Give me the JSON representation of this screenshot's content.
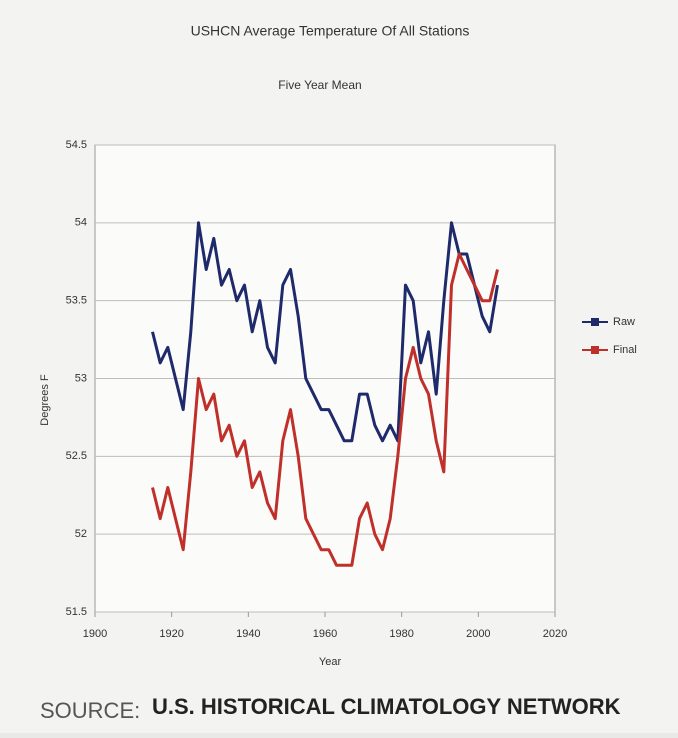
{
  "chart_data": {
    "type": "line",
    "title": "USHCN Average Temperature Of All Stations",
    "subtitle": "Five Year Mean",
    "x_label": "Year",
    "y_label": "Degrees F",
    "source_label": "SOURCE:",
    "source": "U.S. HISTORICAL CLIMATOLOGY NETWORK",
    "x": [
      1915,
      1917,
      1919,
      1921,
      1923,
      1925,
      1927,
      1929,
      1931,
      1933,
      1935,
      1937,
      1939,
      1941,
      1943,
      1945,
      1947,
      1949,
      1951,
      1953,
      1955,
      1957,
      1959,
      1961,
      1963,
      1965,
      1967,
      1969,
      1971,
      1973,
      1975,
      1977,
      1979,
      1981,
      1983,
      1985,
      1987,
      1989,
      1991,
      1993,
      1995,
      1997,
      1999,
      2001,
      2003,
      2005
    ],
    "series": [
      {
        "name": "Raw",
        "color": "#1f2a6b",
        "values": [
          53.3,
          53.1,
          53.2,
          53.0,
          52.8,
          53.3,
          54.0,
          53.7,
          53.9,
          53.6,
          53.7,
          53.5,
          53.6,
          53.3,
          53.5,
          53.2,
          53.1,
          53.6,
          53.7,
          53.4,
          53.0,
          52.9,
          52.8,
          52.8,
          52.7,
          52.6,
          52.6,
          52.9,
          52.9,
          52.7,
          52.6,
          52.7,
          52.6,
          53.6,
          53.5,
          53.1,
          53.3,
          52.9,
          53.5,
          54.0,
          53.8,
          53.8,
          53.6,
          53.4,
          53.3,
          53.6
        ]
      },
      {
        "name": "Final",
        "color": "#c0302a",
        "values": [
          52.3,
          52.1,
          52.3,
          52.1,
          51.9,
          52.4,
          53.0,
          52.8,
          52.9,
          52.6,
          52.7,
          52.5,
          52.6,
          52.3,
          52.4,
          52.2,
          52.1,
          52.6,
          52.8,
          52.5,
          52.1,
          52.0,
          51.9,
          51.9,
          51.8,
          51.8,
          51.8,
          52.1,
          52.2,
          52.0,
          51.9,
          52.1,
          52.5,
          53.0,
          53.2,
          53.0,
          52.9,
          52.6,
          52.4,
          53.6,
          53.8,
          53.7,
          53.6,
          53.5,
          53.5,
          53.7
        ]
      }
    ],
    "xlim": [
      1900,
      2020
    ],
    "xticks": [
      1900,
      1920,
      1940,
      1960,
      1980,
      2000,
      2020
    ],
    "ylim": [
      51.5,
      54.5
    ],
    "yticks": [
      51.5,
      52,
      52.5,
      53,
      53.5,
      54,
      54.5
    ],
    "grid": true,
    "legend": "right"
  }
}
